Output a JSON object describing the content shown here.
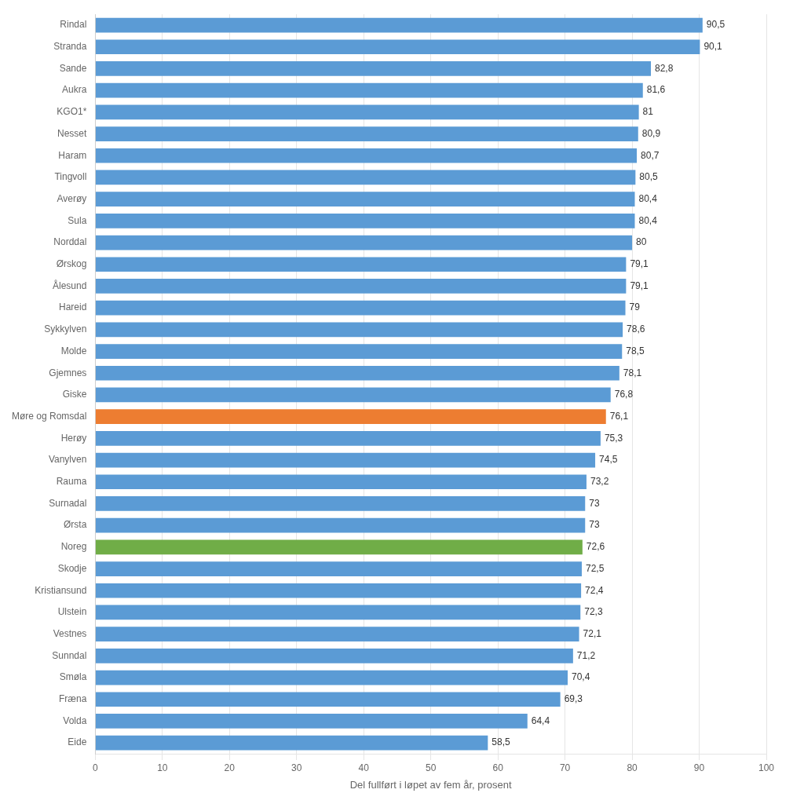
{
  "chart_data": {
    "type": "bar",
    "orientation": "horizontal",
    "categories": [
      "Rindal",
      "Stranda",
      "Sande",
      "Aukra",
      "KGO1*",
      "Nesset",
      "Haram",
      "Tingvoll",
      "Averøy",
      "Sula",
      "Norddal",
      "Ørskog",
      "Ålesund",
      "Hareid",
      "Sykkylven",
      "Molde",
      "Gjemnes",
      "Giske",
      "Møre og Romsdal",
      "Herøy",
      "Vanylven",
      "Rauma",
      "Surnadal",
      "Ørsta",
      "Noreg",
      "Skodje",
      "Kristiansund",
      "Ulstein",
      "Vestnes",
      "Sunndal",
      "Smøla",
      "Fræna",
      "Volda",
      "Eide"
    ],
    "values": [
      90.5,
      90.1,
      82.8,
      81.6,
      81.0,
      80.9,
      80.7,
      80.5,
      80.4,
      80.4,
      80.0,
      79.1,
      79.1,
      79.0,
      78.6,
      78.5,
      78.1,
      76.8,
      76.1,
      75.3,
      74.5,
      73.2,
      73.0,
      73.0,
      72.6,
      72.5,
      72.4,
      72.3,
      72.1,
      71.2,
      70.4,
      69.3,
      64.4,
      58.5
    ],
    "value_labels": [
      "90,5",
      "90,1",
      "82,8",
      "81,6",
      "81",
      "80,9",
      "80,7",
      "80,5",
      "80,4",
      "80,4",
      "80",
      "79,1",
      "79,1",
      "79",
      "78,6",
      "78,5",
      "78,1",
      "76,8",
      "76,1",
      "75,3",
      "74,5",
      "73,2",
      "73",
      "73",
      "72,6",
      "72,5",
      "72,4",
      "72,3",
      "72,1",
      "71,2",
      "70,4",
      "69,3",
      "64,4",
      "58,5"
    ],
    "colors": [
      "#5b9bd5",
      "#5b9bd5",
      "#5b9bd5",
      "#5b9bd5",
      "#5b9bd5",
      "#5b9bd5",
      "#5b9bd5",
      "#5b9bd5",
      "#5b9bd5",
      "#5b9bd5",
      "#5b9bd5",
      "#5b9bd5",
      "#5b9bd5",
      "#5b9bd5",
      "#5b9bd5",
      "#5b9bd5",
      "#5b9bd5",
      "#5b9bd5",
      "#ed7d31",
      "#5b9bd5",
      "#5b9bd5",
      "#5b9bd5",
      "#5b9bd5",
      "#5b9bd5",
      "#70ad47",
      "#5b9bd5",
      "#5b9bd5",
      "#5b9bd5",
      "#5b9bd5",
      "#5b9bd5",
      "#5b9bd5",
      "#5b9bd5",
      "#5b9bd5",
      "#5b9bd5"
    ],
    "xlabel": "Del fullført i løpet av fem år, prosent",
    "xlim": [
      0,
      100
    ],
    "xticks": [
      0,
      10,
      20,
      30,
      40,
      50,
      60,
      70,
      80,
      90,
      100
    ],
    "grid": true,
    "data_labels": true
  }
}
